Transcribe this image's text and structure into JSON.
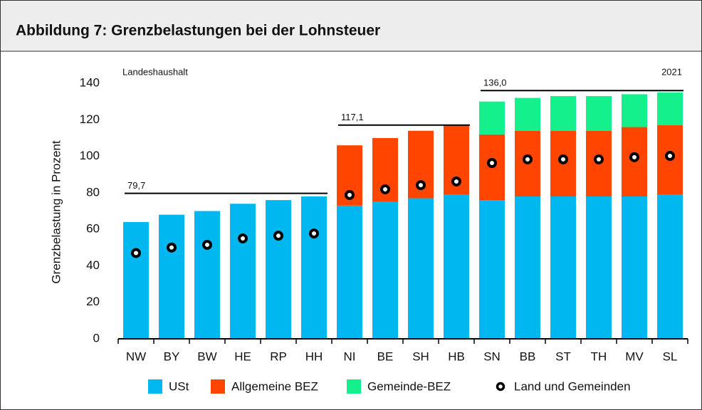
{
  "chart_data": {
    "type": "bar",
    "stacked": true,
    "title": "Abbildung 7: Grenzbelastungen bei der Lohnsteuer",
    "y_label": "Grenzbelastung in Prozent",
    "annotations": [
      "Landeshaushalt",
      "2021"
    ],
    "categories": [
      "NW",
      "BY",
      "BW",
      "HE",
      "RP",
      "HH",
      "NI",
      "BE",
      "SH",
      "HB",
      "SN",
      "BB",
      "ST",
      "TH",
      "MV",
      "SL"
    ],
    "series": [
      {
        "name": "USt",
        "type": "bar",
        "color": "#00b7ef",
        "values": [
          64,
          68,
          70,
          74,
          76,
          78,
          73,
          75,
          77,
          79,
          76,
          78,
          78,
          78,
          78,
          79
        ]
      },
      {
        "name": "Allgemeine BEZ",
        "type": "bar",
        "color": "#ff4500",
        "values": [
          null,
          null,
          null,
          null,
          null,
          null,
          33,
          35,
          37,
          38,
          36,
          36,
          36,
          36,
          38,
          38
        ]
      },
      {
        "name": "Gemeinde-BEZ",
        "type": "bar",
        "color": "#14f08c",
        "values": [
          null,
          null,
          null,
          null,
          null,
          null,
          null,
          null,
          null,
          null,
          18,
          18,
          19,
          19,
          18,
          18
        ]
      },
      {
        "name": "Land und Gemeinden",
        "type": "scatter",
        "color": "#000000",
        "values": [
          47,
          50,
          51.5,
          55,
          56.5,
          57.7,
          78.8,
          81.9,
          84.2,
          86.2,
          96.3,
          98.3,
          98.3,
          98.3,
          99.5,
          100.2
        ]
      }
    ],
    "reference_lines": [
      {
        "value": 79.7,
        "label": "79,7",
        "from": "NW",
        "to": "HH"
      },
      {
        "value": 117.1,
        "label": "117,1",
        "from": "NI",
        "to": "HB"
      },
      {
        "value": 136.0,
        "label": "136,0",
        "from": "SN",
        "to": "SL"
      }
    ],
    "ylim": [
      0,
      140
    ],
    "yticks": [
      0,
      20,
      40,
      60,
      80,
      100,
      120,
      140
    ]
  }
}
